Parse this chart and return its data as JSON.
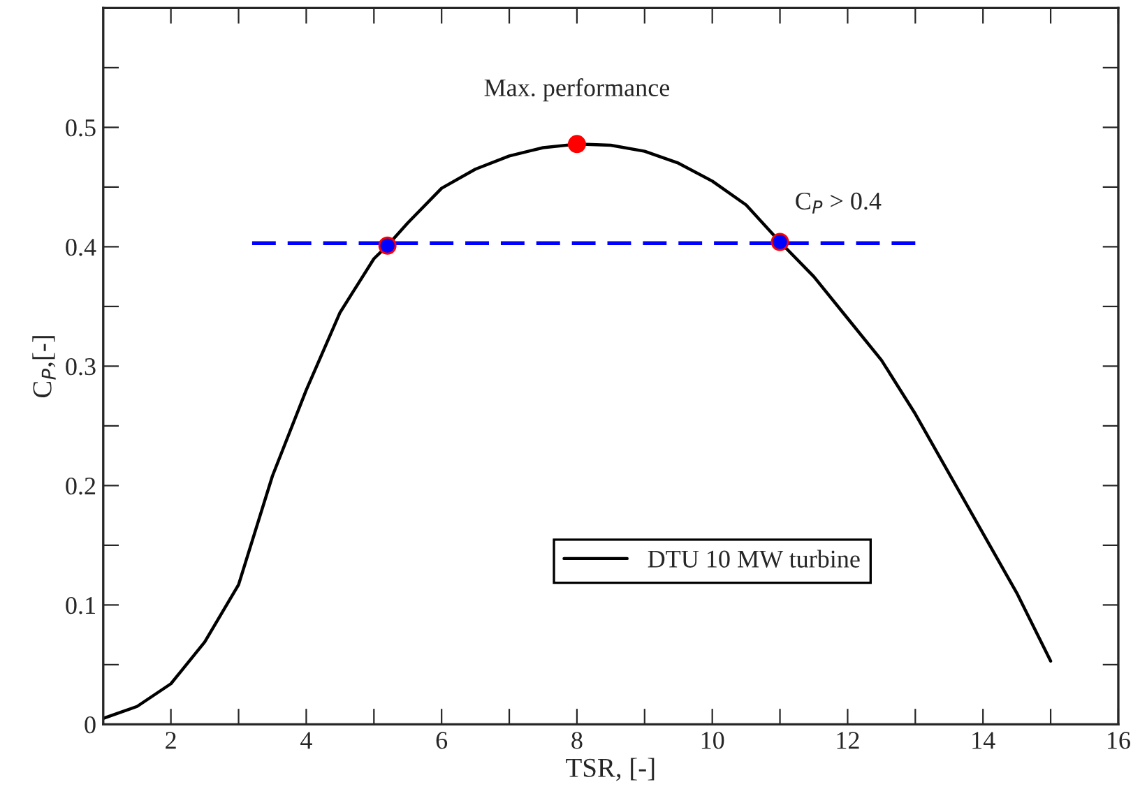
{
  "chart_data": {
    "type": "line",
    "xlabel": "TSR, [-]",
    "ylabel": "C$_{P}$,[-]",
    "xlim": [
      1,
      16
    ],
    "ylim": [
      0,
      0.6
    ],
    "xticks": [
      {
        "value": 2,
        "label": "2"
      },
      {
        "value": 3,
        "label": null
      },
      {
        "value": 4,
        "label": "4"
      },
      {
        "value": 5,
        "label": null
      },
      {
        "value": 6,
        "label": "6"
      },
      {
        "value": 7,
        "label": null
      },
      {
        "value": 8,
        "label": "8"
      },
      {
        "value": 9,
        "label": null
      },
      {
        "value": 10,
        "label": "10"
      },
      {
        "value": 11,
        "label": null
      },
      {
        "value": 12,
        "label": "12"
      },
      {
        "value": 13,
        "label": null
      },
      {
        "value": 14,
        "label": "14"
      },
      {
        "value": 15,
        "label": null
      },
      {
        "value": 16,
        "label": "16"
      }
    ],
    "yticks": [
      0,
      {
        "value": 0.05,
        "label": null
      },
      0.1,
      {
        "value": 0.15,
        "label": null
      },
      0.2,
      {
        "value": 0.25,
        "label": null
      },
      0.3,
      {
        "value": 0.35,
        "label": null
      },
      0.4,
      {
        "value": 0.45,
        "label": null
      },
      0.5,
      {
        "value": 0.55,
        "label": null
      }
    ],
    "grid": false,
    "legend": "bottom",
    "marker": "none",
    "line_style": "solid",
    "series": [
      {
        "name": "DTU 10 MW turbine",
        "color": "#000000",
        "x": [
          1,
          1.5,
          2,
          2.5,
          3,
          3.5,
          4,
          4.5,
          5,
          5.2,
          5.5,
          6,
          6.5,
          7,
          7.5,
          8,
          8.5,
          9,
          9.5,
          10,
          10.5,
          11,
          11.5,
          12,
          12.5,
          13,
          13.5,
          14,
          14.5,
          15
        ],
        "values": [
          0.005,
          0.015,
          0.034,
          0.069,
          0.117,
          0.208,
          0.28,
          0.345,
          0.39,
          0.401,
          0.42,
          0.449,
          0.465,
          0.476,
          0.483,
          0.486,
          0.485,
          0.48,
          0.47,
          0.455,
          0.435,
          0.404,
          0.375,
          0.34,
          0.305,
          0.26,
          0.21,
          0.16,
          0.11,
          0.053
        ]
      },
      {
        "type": "line",
        "color": "#0000ff",
        "line_style": "dashed",
        "x": [
          3.2,
          13
        ],
        "values": [
          0.403,
          0.403
        ]
      },
      {
        "type": "scatter",
        "marker": "circle",
        "colors": [
          "#ff0000",
          "#0000ff",
          "#0000ff"
        ],
        "x": [
          8,
          5.2,
          11
        ],
        "values": [
          0.486,
          0.401,
          0.404
        ]
      }
    ],
    "annotations": [
      {
        "text": "Max. performance",
        "x": 8,
        "y": 0.486
      },
      {
        "text": "C$_{P}$ > 0.4",
        "x": 11,
        "y": 0.404
      }
    ]
  }
}
